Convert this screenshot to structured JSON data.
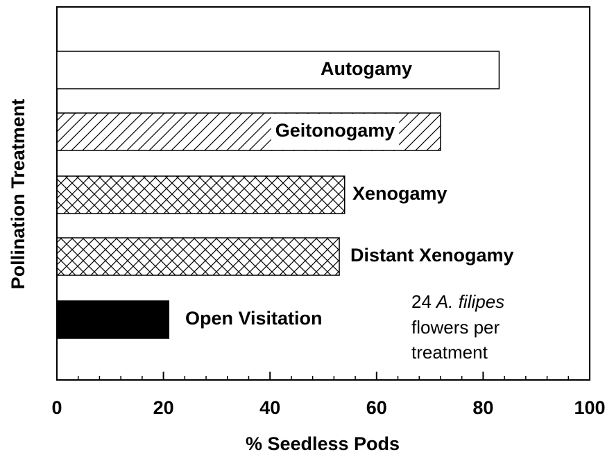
{
  "chart_data": {
    "type": "hbar",
    "xlabel": "% Seedless Pods",
    "ylabel": "Pollination Treatment",
    "categories": [
      "Autogamy",
      "Geitonogamy",
      "Xenogamy",
      "Distant Xenogamy",
      "Open Visitation"
    ],
    "values": [
      83,
      72,
      54,
      53,
      21
    ],
    "patterns": [
      "none",
      "hatch",
      "crosshatch",
      "crosshatch",
      "solid"
    ],
    "color": "#000000",
    "xlim": [
      0,
      100
    ],
    "xticks": [
      0,
      20,
      40,
      60,
      80,
      100
    ],
    "xminorticks": [
      4,
      8,
      12,
      16,
      24,
      28,
      32,
      36,
      44,
      48,
      52,
      56,
      64,
      68,
      72,
      76,
      84,
      88,
      92,
      96
    ],
    "annotation": [
      "24",
      "A. filipes",
      "flowers per",
      "treatment"
    ]
  }
}
